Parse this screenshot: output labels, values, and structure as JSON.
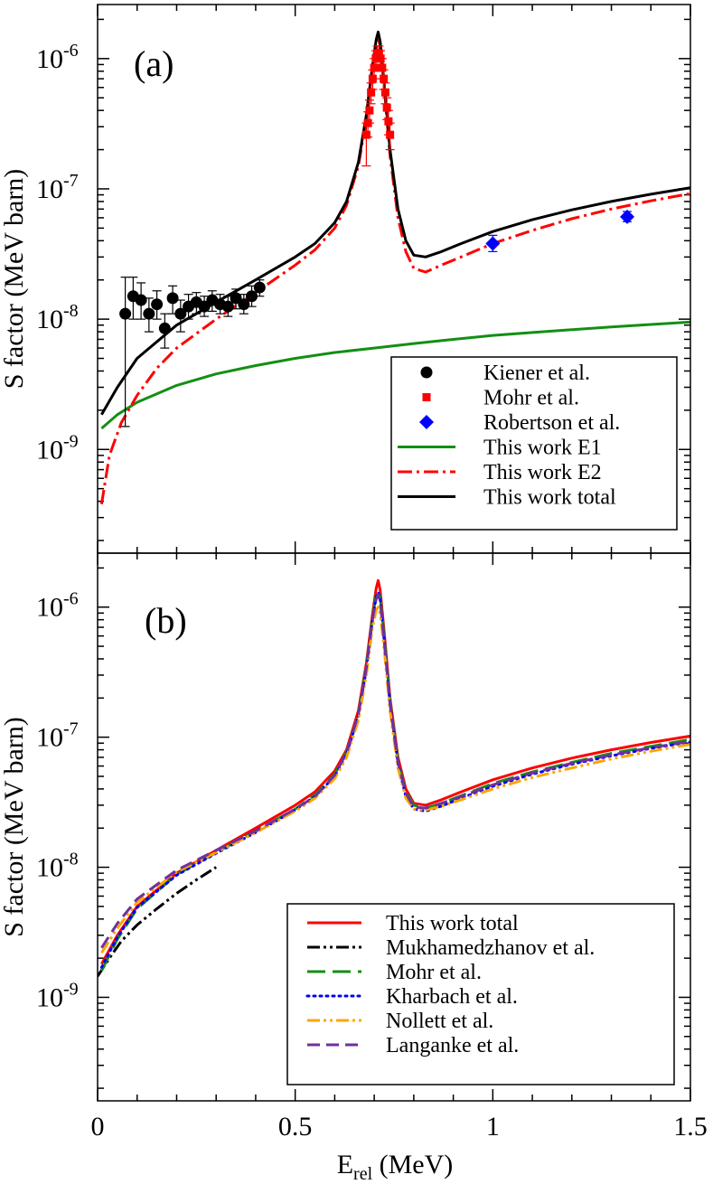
{
  "chart_data": [
    {
      "panel_label": "(a)",
      "type": "line",
      "xlabel_main": "E",
      "xlabel_sub": "rel",
      "xlabel_unit": " (MeV)",
      "ylabel": "S factor (MeV barn)",
      "xlim": [
        0,
        1.5
      ],
      "ylim": [
        1.6e-10,
        2.6e-06
      ],
      "yscale": "log",
      "yticks": [
        {
          "exp": "-9",
          "value": 1e-09
        },
        {
          "exp": "-8",
          "value": 1e-08
        },
        {
          "exp": "-7",
          "value": 1e-07
        },
        {
          "exp": "-6",
          "value": 1e-06
        }
      ],
      "legend_position": "bottom-right",
      "series": [
        {
          "name": "This work E1",
          "color": "#138f13",
          "style": "solid",
          "x": [
            0.01,
            0.05,
            0.1,
            0.2,
            0.3,
            0.4,
            0.5,
            0.6,
            0.7,
            0.8,
            0.9,
            1.0,
            1.1,
            1.2,
            1.3,
            1.4,
            1.5
          ],
          "y": [
            1.45e-09,
            1.85e-09,
            2.3e-09,
            3.1e-09,
            3.8e-09,
            4.4e-09,
            5e-09,
            5.55e-09,
            6e-09,
            6.5e-09,
            7e-09,
            7.5e-09,
            7.9e-09,
            8.3e-09,
            8.7e-09,
            9.1e-09,
            9.5e-09
          ]
        },
        {
          "name": "This work E2",
          "color": "#ff0000",
          "style": "dashdot",
          "x": [
            0.01,
            0.03,
            0.06,
            0.1,
            0.15,
            0.2,
            0.3,
            0.4,
            0.5,
            0.55,
            0.6,
            0.63,
            0.66,
            0.68,
            0.695,
            0.705,
            0.71,
            0.715,
            0.725,
            0.74,
            0.76,
            0.78,
            0.8,
            0.83,
            0.87,
            0.92,
            1.0,
            1.1,
            1.2,
            1.3,
            1.4,
            1.5
          ],
          "y": [
            3.8e-10,
            9e-10,
            1.6e-09,
            2.6e-09,
            4.2e-09,
            6e-09,
            1e-08,
            1.6e-08,
            2.6e-08,
            3.4e-08,
            5e-08,
            7.5e-08,
            1.5e-07,
            3.5e-07,
            8e-07,
            1.3e-06,
            1.45e-06,
            1.25e-06,
            6e-07,
            1.8e-07,
            6e-08,
            3.3e-08,
            2.45e-08,
            2.3e-08,
            2.6e-08,
            3e-08,
            3.8e-08,
            4.8e-08,
            5.9e-08,
            7e-08,
            8.1e-08,
            9.2e-08
          ]
        },
        {
          "name": "This work total",
          "color": "#000000",
          "style": "solid",
          "x": [
            0.01,
            0.05,
            0.1,
            0.2,
            0.3,
            0.4,
            0.5,
            0.55,
            0.6,
            0.63,
            0.66,
            0.68,
            0.695,
            0.705,
            0.71,
            0.715,
            0.725,
            0.74,
            0.76,
            0.78,
            0.8,
            0.83,
            0.87,
            0.92,
            1.0,
            1.1,
            1.2,
            1.3,
            1.4,
            1.5
          ],
          "y": [
            1.85e-09,
            3e-09,
            5e-09,
            9e-09,
            1.35e-08,
            2e-08,
            3e-08,
            3.8e-08,
            5.5e-08,
            8e-08,
            1.6e-07,
            3.7e-07,
            8.5e-07,
            1.4e-06,
            1.6e-06,
            1.35e-06,
            6.5e-07,
            2e-07,
            7e-08,
            4e-08,
            3.1e-08,
            3e-08,
            3.3e-08,
            3.8e-08,
            4.7e-08,
            5.8e-08,
            6.9e-08,
            8e-08,
            9.1e-08,
            1.02e-07
          ]
        }
      ],
      "points": [
        {
          "name": "Kiener et al.",
          "color": "#000000",
          "marker": "circle",
          "x": [
            0.07,
            0.09,
            0.11,
            0.13,
            0.15,
            0.17,
            0.19,
            0.21,
            0.23,
            0.25,
            0.27,
            0.29,
            0.31,
            0.33,
            0.35,
            0.37,
            0.39,
            0.41
          ],
          "y": [
            1.1e-08,
            1.5e-08,
            1.4e-08,
            1.1e-08,
            1.3e-08,
            8.5e-09,
            1.45e-08,
            1.1e-08,
            1.25e-08,
            1.35e-08,
            1.25e-08,
            1.4e-08,
            1.3e-08,
            1.25e-08,
            1.45e-08,
            1.3e-08,
            1.5e-08,
            1.75e-08
          ],
          "err_low": [
            1.5e-09,
            1e-08,
            1e-08,
            8e-09,
            1e-08,
            6e-09,
            1.1e-08,
            8e-09,
            1e-08,
            1.1e-08,
            1.05e-08,
            1.15e-08,
            1.1e-08,
            1.05e-08,
            1.2e-08,
            1.1e-08,
            1.25e-08,
            1.5e-08
          ],
          "err_high": [
            2.1e-08,
            2.1e-08,
            1.9e-08,
            1.45e-08,
            1.65e-08,
            1.1e-08,
            1.8e-08,
            1.4e-08,
            1.55e-08,
            1.6e-08,
            1.5e-08,
            1.65e-08,
            1.55e-08,
            1.5e-08,
            1.7e-08,
            1.55e-08,
            1.8e-08,
            2e-08
          ]
        },
        {
          "name": "Mohr et al.",
          "color": "#ff0000",
          "marker": "square",
          "x": [
            0.68,
            0.684,
            0.688,
            0.692,
            0.696,
            0.7,
            0.704,
            0.708,
            0.712,
            0.716,
            0.72,
            0.724,
            0.728,
            0.732,
            0.736,
            0.74
          ],
          "y": [
            2.6e-07,
            3.2e-07,
            4e-07,
            5.5e-07,
            7e-07,
            8.5e-07,
            1e-06,
            1.1e-06,
            1.1e-06,
            1e-06,
            8.5e-07,
            7e-07,
            5.5e-07,
            4.2e-07,
            3.3e-07,
            2.6e-07
          ],
          "err_low": [
            1.5e-07,
            2.5e-07,
            3.2e-07,
            4.5e-07,
            5.8e-07,
            7e-07,
            8.5e-07,
            9.5e-07,
            9.5e-07,
            8.5e-07,
            7e-07,
            5.8e-07,
            4.5e-07,
            3.4e-07,
            2.6e-07,
            2e-07
          ],
          "err_high": [
            3.2e-07,
            3.9e-07,
            4.8e-07,
            6.5e-07,
            8.2e-07,
            1e-06,
            1.15e-06,
            1.25e-06,
            1.25e-06,
            1.15e-06,
            1e-06,
            8.2e-07,
            6.5e-07,
            5e-07,
            4e-07,
            3.2e-07
          ]
        },
        {
          "name": "Robertson et al.",
          "color": "#0000ff",
          "marker": "diamond",
          "x": [
            1.0,
            1.34
          ],
          "y": [
            3.8e-08,
            6.1e-08
          ],
          "err_low": [
            3.3e-08,
            5.6e-08
          ],
          "err_high": [
            4.4e-08,
            6.7e-08
          ]
        }
      ],
      "legend": [
        {
          "label": "Kiener et al.",
          "color": "#000000",
          "kind": "circle"
        },
        {
          "label": "Mohr et al.",
          "color": "#ff0000",
          "kind": "square"
        },
        {
          "label": "Robertson et al.",
          "color": "#0000ff",
          "kind": "diamond"
        },
        {
          "label": "This work E1",
          "color": "#138f13",
          "kind": "solid"
        },
        {
          "label": "This work E2",
          "color": "#ff0000",
          "kind": "dashdot"
        },
        {
          "label": "This work total",
          "color": "#000000",
          "kind": "solid"
        }
      ]
    },
    {
      "panel_label": "(b)",
      "type": "line",
      "xlabel_main": "E",
      "xlabel_sub": "rel",
      "xlabel_unit": " (MeV)",
      "ylabel": "S factor (MeV barn)",
      "xlim": [
        0,
        1.5
      ],
      "xticks": [
        "0",
        "0.5",
        "1",
        "1.5"
      ],
      "xtick_values": [
        0,
        0.5,
        1,
        1.5
      ],
      "ylim": [
        1.6e-10,
        2.6e-06
      ],
      "yscale": "log",
      "yticks": [
        {
          "exp": "-9",
          "value": 1e-09
        },
        {
          "exp": "-8",
          "value": 1e-08
        },
        {
          "exp": "-7",
          "value": 1e-07
        },
        {
          "exp": "-6",
          "value": 1e-06
        }
      ],
      "legend_position": "bottom-right",
      "series": [
        {
          "name": "This work total",
          "color": "#ff0000",
          "style": "solid",
          "width": 3,
          "x": [
            0.01,
            0.05,
            0.1,
            0.2,
            0.3,
            0.4,
            0.5,
            0.55,
            0.6,
            0.63,
            0.66,
            0.68,
            0.695,
            0.705,
            0.71,
            0.715,
            0.725,
            0.74,
            0.76,
            0.78,
            0.8,
            0.83,
            0.87,
            0.92,
            1.0,
            1.1,
            1.2,
            1.3,
            1.4,
            1.5
          ],
          "y": [
            1.8e-09,
            3e-09,
            5e-09,
            9e-09,
            1.35e-08,
            2e-08,
            3e-08,
            3.8e-08,
            5.5e-08,
            8e-08,
            1.6e-07,
            3.7e-07,
            8.5e-07,
            1.4e-06,
            1.6e-06,
            1.35e-06,
            6.5e-07,
            2e-07,
            7e-08,
            4e-08,
            3.1e-08,
            3e-08,
            3.3e-08,
            3.8e-08,
            4.7e-08,
            5.8e-08,
            6.9e-08,
            8e-08,
            9.1e-08,
            1.02e-07
          ]
        },
        {
          "name": "Mukhamedzhanov et al.",
          "color": "#000000",
          "style": "dashdotdot",
          "width": 3,
          "x": [
            0.0,
            0.03,
            0.06,
            0.1,
            0.15,
            0.2,
            0.25,
            0.3
          ],
          "y": [
            1.45e-09,
            2e-09,
            2.7e-09,
            3.6e-09,
            4.8e-09,
            6.3e-09,
            8e-09,
            1e-08
          ]
        },
        {
          "name": "Mohr et al.",
          "color": "#138f13",
          "style": "longdash",
          "width": 3,
          "x": [
            0.01,
            0.05,
            0.1,
            0.2,
            0.3,
            0.4,
            0.5,
            0.55,
            0.6,
            0.63,
            0.66,
            0.68,
            0.695,
            0.705,
            0.71,
            0.715,
            0.725,
            0.74,
            0.76,
            0.78,
            0.8,
            0.83,
            0.87,
            0.92,
            1.0,
            1.1,
            1.2,
            1.3,
            1.4,
            1.5
          ],
          "y": [
            1.6e-09,
            2.8e-09,
            4.8e-09,
            8.8e-09,
            1.3e-08,
            1.9e-08,
            2.8e-08,
            3.6e-08,
            5.2e-08,
            7.7e-08,
            1.5e-07,
            3.5e-07,
            8e-07,
            1.25e-06,
            1.35e-06,
            1.2e-06,
            6e-07,
            1.9e-07,
            6.6e-08,
            3.8e-08,
            3e-08,
            2.85e-08,
            3.1e-08,
            3.55e-08,
            4.4e-08,
            5.4e-08,
            6.4e-08,
            7.5e-08,
            8.5e-08,
            9.6e-08
          ]
        },
        {
          "name": "Kharbach et al.",
          "color": "#0000ff",
          "style": "dotted",
          "width": 3,
          "x": [
            0.01,
            0.05,
            0.1,
            0.2,
            0.3,
            0.4,
            0.5,
            0.55,
            0.6,
            0.63,
            0.66,
            0.68,
            0.695,
            0.705,
            0.71,
            0.715,
            0.725,
            0.74,
            0.76,
            0.78,
            0.8,
            0.83,
            0.87,
            0.92,
            1.0,
            1.1,
            1.2,
            1.3,
            1.4,
            1.5
          ],
          "y": [
            1.7e-09,
            2.9e-09,
            4.9e-09,
            8.7e-09,
            1.28e-08,
            1.85e-08,
            2.75e-08,
            3.5e-08,
            5e-08,
            7.4e-08,
            1.45e-07,
            3.3e-07,
            7.6e-07,
            1.2e-06,
            1.3e-06,
            1.15e-06,
            5.6e-07,
            1.8e-07,
            6.2e-08,
            3.5e-08,
            2.8e-08,
            2.7e-08,
            2.95e-08,
            3.4e-08,
            4.2e-08,
            5.2e-08,
            6.2e-08,
            7.2e-08,
            8.2e-08,
            9.2e-08
          ]
        },
        {
          "name": "Nollett et al.",
          "color": "#ffa500",
          "style": "dashdotdot",
          "width": 3,
          "x": [
            0.01,
            0.05,
            0.1,
            0.2,
            0.3,
            0.4,
            0.5,
            0.55,
            0.6,
            0.63,
            0.66,
            0.68,
            0.695,
            0.705,
            0.71,
            0.715,
            0.725,
            0.74,
            0.76,
            0.78,
            0.8,
            0.83,
            0.87,
            0.92,
            1.0,
            1.1,
            1.2,
            1.3,
            1.4,
            1.5
          ],
          "y": [
            2.2e-09,
            3.4e-09,
            5.4e-09,
            9.2e-09,
            1.3e-08,
            1.85e-08,
            2.7e-08,
            3.4e-08,
            4.8e-08,
            7e-08,
            1.35e-07,
            3e-07,
            6.8e-07,
            9.5e-07,
            1e-06,
            9e-07,
            4.8e-07,
            1.6e-07,
            5.8e-08,
            3.4e-08,
            2.8e-08,
            2.75e-08,
            2.95e-08,
            3.3e-08,
            4e-08,
            4.9e-08,
            5.8e-08,
            6.8e-08,
            7.8e-08,
            8.8e-08
          ]
        },
        {
          "name": "Langanke et al.",
          "color": "#7030a0",
          "style": "dash",
          "width": 3,
          "x": [
            0.01,
            0.05,
            0.1,
            0.2,
            0.3,
            0.4,
            0.5,
            0.55,
            0.6,
            0.63,
            0.66,
            0.68,
            0.695,
            0.705,
            0.71,
            0.715,
            0.725,
            0.74,
            0.76,
            0.78,
            0.8,
            0.83,
            0.87,
            0.92,
            1.0,
            1.1,
            1.2,
            1.3,
            1.4,
            1.5
          ],
          "y": [
            2.4e-09,
            3.7e-09,
            5.7e-09,
            9.5e-09,
            1.35e-08,
            1.9e-08,
            2.8e-08,
            3.5e-08,
            5.1e-08,
            7.6e-08,
            1.5e-07,
            3.4e-07,
            7.8e-07,
            1.15e-06,
            1.25e-06,
            1.1e-06,
            5.5e-07,
            1.8e-07,
            6.4e-08,
            3.7e-08,
            2.9e-08,
            2.85e-08,
            3.1e-08,
            3.5e-08,
            4.3e-08,
            5.3e-08,
            6.3e-08,
            7.3e-08,
            8.3e-08,
            9.3e-08
          ]
        }
      ],
      "legend": [
        {
          "label": "This work total",
          "color": "#ff0000",
          "kind": "solid"
        },
        {
          "label": "Mukhamedzhanov et al.",
          "color": "#000000",
          "kind": "dashdotdot"
        },
        {
          "label": "Mohr et al.",
          "color": "#138f13",
          "kind": "longdash"
        },
        {
          "label": "Kharbach et al.",
          "color": "#0000ff",
          "kind": "dotted"
        },
        {
          "label": "Nollett et al.",
          "color": "#ffa500",
          "kind": "dashdotdot"
        },
        {
          "label": "Langanke et al.",
          "color": "#7030a0",
          "kind": "dash"
        }
      ]
    }
  ]
}
